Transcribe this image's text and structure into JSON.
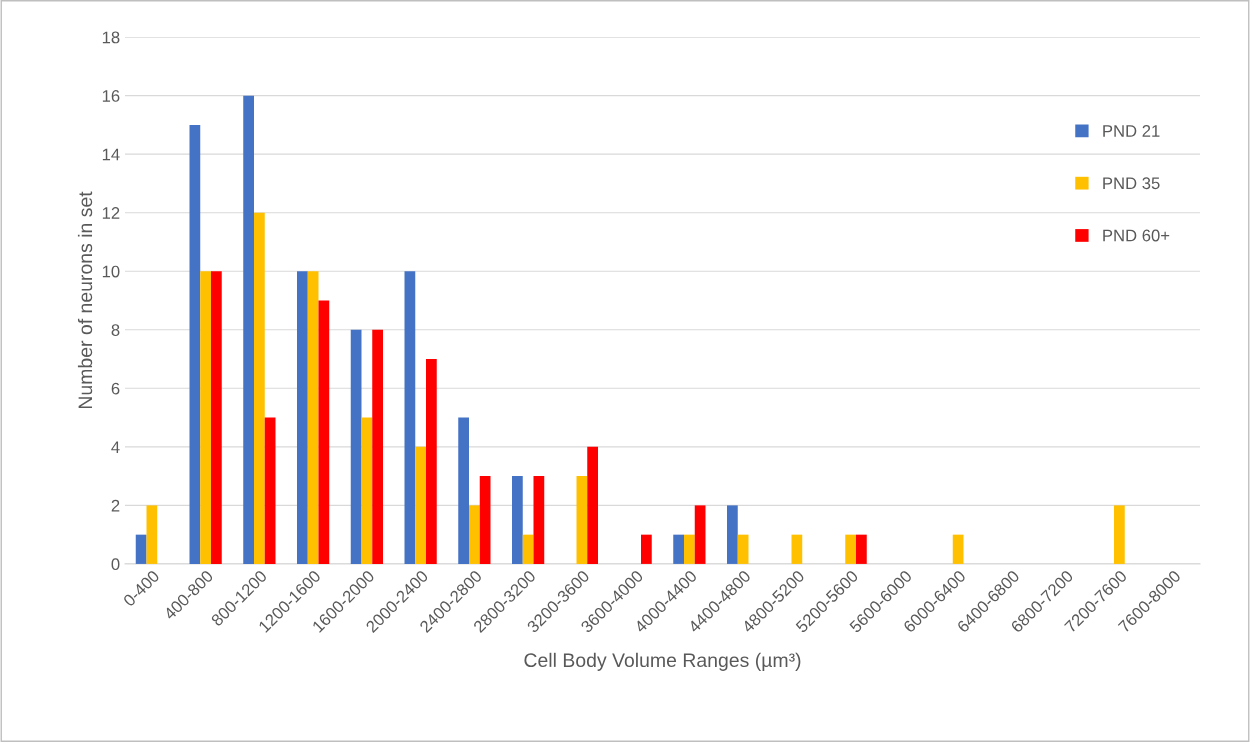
{
  "chart_data": {
    "type": "bar",
    "xlabel": "Cell Body Volume Ranges (µm³)",
    "ylabel": "Number of neurons in set",
    "categories": [
      "0-400",
      "400-800",
      "800-1200",
      "1200-1600",
      "1600-2000",
      "2000-2400",
      "2400-2800",
      "2800-3200",
      "3200-3600",
      "3600-4000",
      "4000-4400",
      "4400-4800",
      "4800-5200",
      "5200-5600",
      "5600-6000",
      "6000-6400",
      "6400-6800",
      "6800-7200",
      "7200-7600",
      "7600-8000"
    ],
    "series": [
      {
        "name": "PND 21",
        "color": "#4472c4",
        "values": [
          1,
          15,
          16,
          10,
          8,
          10,
          5,
          3,
          0,
          0,
          1,
          2,
          0,
          0,
          0,
          0,
          0,
          0,
          0,
          0
        ]
      },
      {
        "name": "PND 35",
        "color": "#ffc000",
        "values": [
          2,
          10,
          12,
          10,
          5,
          4,
          2,
          1,
          3,
          0,
          1,
          1,
          1,
          1,
          0,
          1,
          0,
          0,
          2,
          0
        ]
      },
      {
        "name": "PND 60+",
        "color": "#ff0000",
        "values": [
          0,
          10,
          5,
          9,
          8,
          7,
          3,
          3,
          4,
          1,
          2,
          0,
          0,
          1,
          0,
          0,
          0,
          0,
          0,
          0
        ]
      }
    ],
    "ylim": [
      0,
      18
    ],
    "yticks": [
      0,
      2,
      4,
      6,
      8,
      10,
      12,
      14,
      16,
      18
    ],
    "grid": "y",
    "legend": "right"
  }
}
